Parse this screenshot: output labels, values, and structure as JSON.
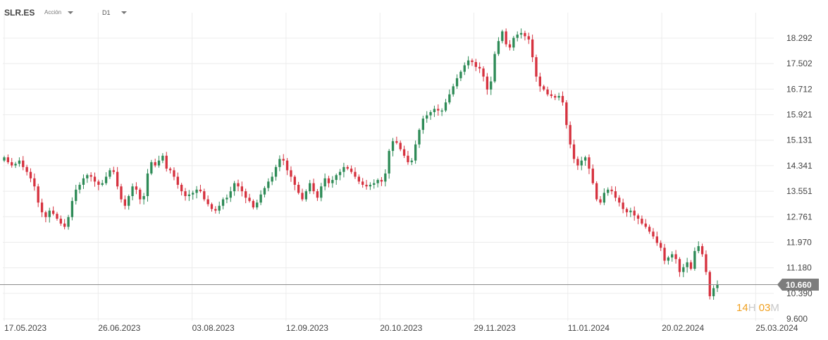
{
  "toolbar": {
    "symbol": "SLR.ES",
    "instrument_type": "Acción",
    "timeframe": "D1"
  },
  "countdown": {
    "hours": "14",
    "hours_unit": "H",
    "minutes": "03",
    "minutes_unit": "M"
  },
  "colors": {
    "up": "#2e8b57",
    "down": "#d6323f",
    "grid": "#ececec",
    "price_line": "#8c8c8c",
    "price_tag": "#7d7d7d"
  },
  "chart_data": {
    "type": "candlestick",
    "symbol": "SLR.ES",
    "timeframe": "D1",
    "y_ticks": [
      "18.292",
      "17.502",
      "16.712",
      "15.921",
      "15.131",
      "14.341",
      "13.551",
      "12.761",
      "11.970",
      "11.180",
      "10.390",
      "9.600"
    ],
    "x_ticks": [
      "17.05.2023",
      "26.06.2023",
      "03.08.2023",
      "12.09.2023",
      "20.10.2023",
      "29.11.2023",
      "11.01.2024",
      "20.02.2024",
      "25.03.2024"
    ],
    "ylim": [
      9.6,
      18.292
    ],
    "last_price": "10.660",
    "grid": true,
    "closes": [
      14.6,
      14.45,
      14.35,
      14.4,
      14.5,
      14.3,
      14.15,
      13.95,
      13.7,
      13.2,
      12.9,
      12.75,
      12.95,
      12.85,
      12.7,
      12.55,
      12.45,
      12.75,
      13.25,
      13.6,
      13.75,
      13.95,
      14.05,
      14.0,
      13.85,
      13.75,
      13.8,
      14.0,
      14.2,
      14.15,
      13.7,
      13.3,
      13.1,
      13.4,
      13.7,
      13.6,
      13.3,
      13.4,
      14.1,
      14.45,
      14.35,
      14.5,
      14.65,
      14.25,
      14.2,
      14.0,
      13.75,
      13.55,
      13.4,
      13.45,
      13.5,
      13.6,
      13.55,
      13.3,
      13.15,
      13.0,
      12.95,
      13.1,
      13.3,
      13.35,
      13.55,
      13.8,
      13.7,
      13.55,
      13.35,
      13.25,
      13.05,
      13.2,
      13.45,
      13.65,
      13.85,
      14.0,
      14.3,
      14.55,
      14.5,
      14.2,
      14.0,
      13.75,
      13.5,
      13.3,
      13.55,
      13.8,
      13.55,
      13.35,
      13.7,
      13.95,
      13.8,
      13.9,
      14.05,
      14.15,
      14.3,
      14.25,
      14.15,
      14.0,
      13.85,
      13.75,
      13.7,
      13.75,
      13.8,
      13.9,
      13.85,
      14.1,
      14.8,
      15.1,
      15.05,
      14.85,
      14.65,
      14.45,
      14.5,
      15.0,
      15.45,
      15.8,
      15.9,
      16.0,
      16.1,
      16.05,
      16.05,
      16.3,
      16.55,
      16.8,
      17.05,
      17.25,
      17.45,
      17.6,
      17.55,
      17.4,
      17.35,
      17.1,
      16.7,
      16.95,
      17.8,
      18.2,
      18.5,
      18.1,
      18.0,
      18.3,
      18.4,
      18.45,
      18.35,
      18.25,
      17.7,
      17.1,
      16.8,
      16.7,
      16.55,
      16.5,
      16.45,
      16.5,
      16.3,
      15.6,
      15.0,
      14.55,
      14.35,
      14.5,
      14.6,
      14.25,
      13.8,
      13.3,
      13.2,
      13.5,
      13.6,
      13.55,
      13.35,
      13.2,
      13.0,
      12.9,
      12.95,
      12.8,
      12.7,
      12.55,
      12.45,
      12.3,
      12.15,
      11.95,
      11.8,
      11.4,
      11.5,
      11.6,
      11.45,
      11.05,
      11.2,
      11.35,
      11.15,
      11.7,
      11.85,
      11.6,
      11.05,
      10.3,
      10.55,
      10.66
    ]
  }
}
